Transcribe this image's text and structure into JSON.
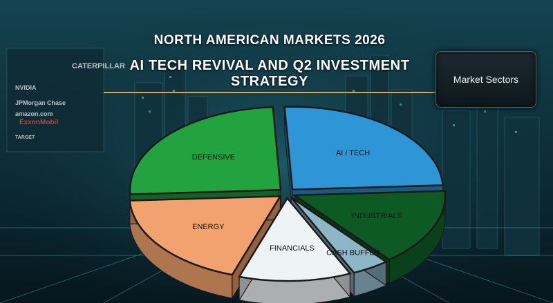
{
  "header": {
    "title": "NORTH AMERICAN MARKETS 2026",
    "subtitle": "AI TECH REVIVAL AND Q2 INVESTMENT STRATEGY"
  },
  "sector_box": {
    "label": "Market Sectors"
  },
  "logos": [
    "CATERPILLAR",
    "NVIDIA",
    "JPMorgan Chase",
    "amazon.com",
    "ExxonMobil",
    "TARGET"
  ],
  "chart_data": {
    "type": "pie",
    "style": "3d-exploded",
    "title": "",
    "slices": [
      {
        "label": "AI / TECH",
        "value": 25,
        "color": "#2e95d6"
      },
      {
        "label": "INDUSTRIALS",
        "value": 15,
        "color": "#0e5a24"
      },
      {
        "label": "CASH BUFFER",
        "value": 4,
        "color": "#8db6c7"
      },
      {
        "label": "FINANCIALS",
        "value": 12,
        "color": "#eef3f6"
      },
      {
        "label": "ENERGY",
        "value": 19,
        "color": "#f2a26e"
      },
      {
        "label": "DEFENSIVE",
        "value": 25,
        "color": "#22a33f"
      }
    ],
    "start_angle_deg": -93,
    "legend": "none",
    "grid": false
  }
}
